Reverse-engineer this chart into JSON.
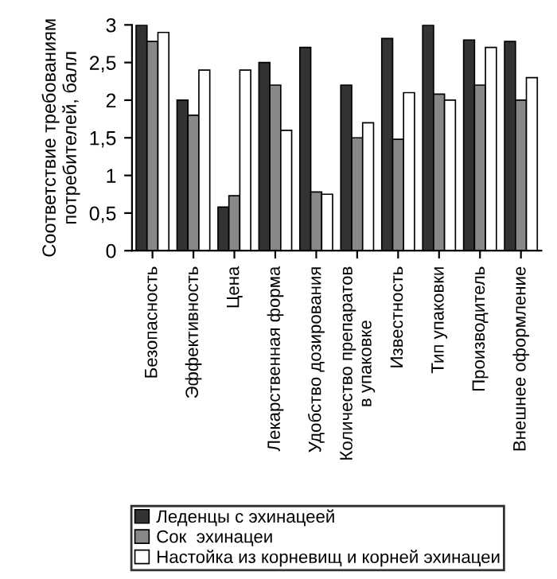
{
  "chart_data": {
    "type": "bar",
    "ylabel": "Соответствие требованиям\nпотребителей, балл",
    "categories": [
      "Безопасность",
      "Эффективность",
      "Цена",
      "Лекарственная форма",
      "Удобство дозирования",
      "Количество препаратов\nв упаковке",
      "Известность",
      "Тип упаковки",
      "Производитель",
      "Внешнее оформление"
    ],
    "series": [
      {
        "name": "Леденцы с эхинацеей",
        "color": "#333333",
        "values": [
          3.0,
          2.0,
          0.58,
          2.5,
          2.7,
          2.2,
          2.82,
          3.0,
          2.8,
          2.78
        ]
      },
      {
        "name": "Сок  эхинацеи",
        "color": "#888888",
        "values": [
          2.78,
          1.8,
          0.73,
          2.2,
          0.78,
          1.5,
          1.48,
          2.08,
          2.2,
          2.0
        ]
      },
      {
        "name": "Настойка из корневищ и корней эхинацеи",
        "color": "#ffffff",
        "values": [
          2.9,
          2.4,
          2.4,
          1.6,
          0.75,
          1.7,
          2.1,
          2.0,
          2.7,
          2.3
        ]
      }
    ],
    "ylim": [
      0,
      3
    ],
    "yticks": [
      0,
      {
        "value": 0.5,
        "label": "0,5"
      },
      1,
      {
        "value": 1.5,
        "label": "1,5"
      },
      2,
      {
        "value": 2.5,
        "label": "2,5"
      },
      3
    ],
    "grid": false,
    "legend": "bottom"
  }
}
